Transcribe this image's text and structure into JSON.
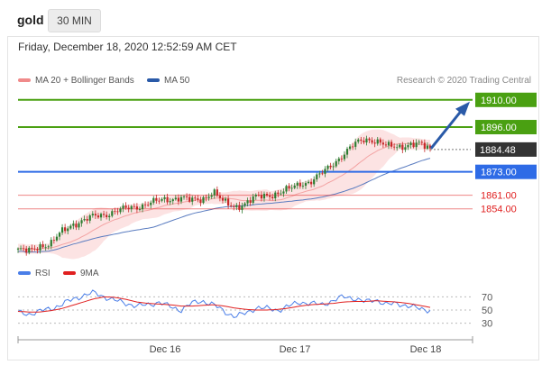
{
  "header": {
    "title": "gold",
    "timeframe": "30 MIN",
    "datetime": "Friday, December 18, 2020 12:52:59 AM CET"
  },
  "legend": {
    "ma20_label": "MA 20 + Bollinger Bands",
    "ma50_label": "MA 50",
    "credit": "Research © 2020 Trading Central",
    "ma20_color": "#f08a8a",
    "ma50_color": "#2a5aa8"
  },
  "rsi_legend": {
    "rsi_label": "RSI",
    "ma_label": "9MA",
    "rsi_color": "#4a7ee8",
    "ma_color": "#e02020"
  },
  "chart_data": [
    {
      "type": "candlestick",
      "title": "gold",
      "ylim": [
        1827,
        1915
      ],
      "x_ticks": [
        "Dec 16",
        "Dec 17",
        "Dec 18"
      ],
      "current_price": "1884.48",
      "levels": [
        {
          "value": 1910.0,
          "label": "1910.00",
          "kind": "target",
          "color": "#4aa012"
        },
        {
          "value": 1896.0,
          "label": "1896.00",
          "kind": "resistance",
          "color": "#4aa012"
        },
        {
          "value": 1884.48,
          "label": "1884.48",
          "kind": "last",
          "color": "#333333"
        },
        {
          "value": 1873.0,
          "label": "1873.00",
          "kind": "pivot",
          "color": "#2e6be6"
        },
        {
          "value": 1861.0,
          "label": "1861.00",
          "kind": "support",
          "color": "#e02020"
        },
        {
          "value": 1854.0,
          "label": "1854.00",
          "kind": "support",
          "color": "#e02020"
        }
      ],
      "close_path": [
        1833,
        1832,
        1835,
        1836,
        1842,
        1846,
        1848,
        1850,
        1851,
        1853,
        1854,
        1855,
        1857,
        1858,
        1859,
        1860,
        1858,
        1859,
        1863,
        1857,
        1855,
        1857,
        1860,
        1861,
        1862,
        1864,
        1867,
        1868,
        1872,
        1877,
        1882,
        1887,
        1890,
        1889,
        1886,
        1886,
        1887,
        1887,
        1885
      ]
    },
    {
      "type": "line",
      "title": "RSI",
      "ylim": [
        20,
        80
      ],
      "y_ticks": [
        70,
        50,
        30
      ],
      "series": [
        {
          "name": "RSI",
          "values": [
            46,
            44,
            48,
            52,
            58,
            66,
            72,
            76,
            70,
            64,
            60,
            56,
            58,
            62,
            55,
            50,
            60,
            64,
            58,
            48,
            40,
            45,
            54,
            52,
            50,
            56,
            62,
            60,
            58,
            64,
            70,
            68,
            62,
            66,
            58,
            60,
            56,
            52,
            50
          ]
        },
        {
          "name": "9MA",
          "values": [
            48,
            47,
            47,
            49,
            52,
            57,
            62,
            67,
            70,
            69,
            66,
            62,
            60,
            59,
            58,
            56,
            56,
            57,
            58,
            56,
            53,
            51,
            50,
            50,
            51,
            53,
            56,
            58,
            59,
            60,
            62,
            63,
            63,
            64,
            63,
            62,
            60,
            57,
            54
          ]
        }
      ]
    }
  ]
}
